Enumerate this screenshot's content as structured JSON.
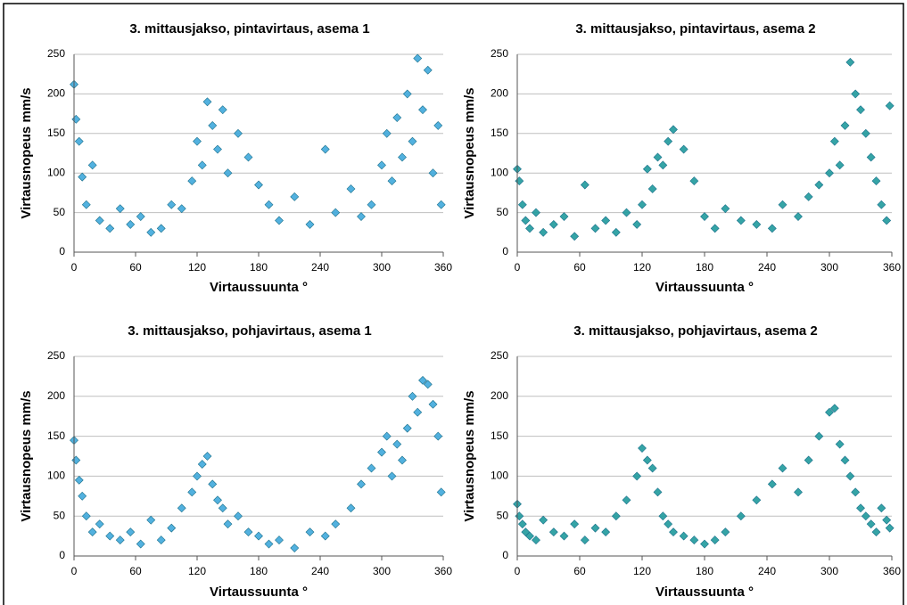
{
  "chart_data": [
    {
      "type": "scatter",
      "title": "3. mittausjakso, pintavirtaus, asema 1",
      "xlabel": "Virtaussuunta °",
      "ylabel": "Virtausnopeus mm/s",
      "color": "#3fa9dc",
      "x": [
        0,
        2,
        5,
        8,
        12,
        18,
        25,
        35,
        45,
        55,
        65,
        75,
        85,
        95,
        105,
        115,
        120,
        125,
        130,
        135,
        140,
        145,
        150,
        160,
        170,
        180,
        190,
        200,
        215,
        230,
        245,
        255,
        270,
        280,
        290,
        300,
        305,
        310,
        315,
        320,
        325,
        330,
        335,
        340,
        345,
        350,
        355,
        358
      ],
      "values": [
        212,
        168,
        140,
        95,
        60,
        110,
        40,
        30,
        55,
        35,
        45,
        25,
        30,
        60,
        55,
        90,
        140,
        110,
        190,
        160,
        130,
        180,
        100,
        150,
        120,
        85,
        60,
        40,
        70,
        35,
        130,
        50,
        80,
        45,
        60,
        110,
        150,
        90,
        170,
        120,
        200,
        140,
        245,
        180,
        230,
        100,
        160,
        60
      ],
      "xlim": [
        0,
        360
      ],
      "xticks": [
        0,
        60,
        120,
        180,
        240,
        300,
        360
      ],
      "ylim": [
        0,
        250
      ],
      "yticks": [
        0,
        50,
        100,
        150,
        200,
        250
      ],
      "grid": true
    },
    {
      "type": "scatter",
      "title": "3. mittausjakso, pintavirtaus, asema 2",
      "xlabel": "Virtaussuunta °",
      "ylabel": "Virtausnopeus mm/s",
      "color": "#1f9a9c",
      "x": [
        0,
        2,
        5,
        8,
        12,
        18,
        25,
        35,
        45,
        55,
        65,
        75,
        85,
        95,
        105,
        115,
        120,
        125,
        130,
        135,
        140,
        145,
        150,
        160,
        170,
        180,
        190,
        200,
        215,
        230,
        245,
        255,
        270,
        280,
        290,
        300,
        305,
        310,
        315,
        320,
        325,
        330,
        335,
        340,
        345,
        350,
        355,
        358
      ],
      "values": [
        105,
        90,
        60,
        40,
        30,
        50,
        25,
        35,
        45,
        20,
        85,
        30,
        40,
        25,
        50,
        35,
        60,
        105,
        80,
        120,
        110,
        140,
        155,
        130,
        90,
        45,
        30,
        55,
        40,
        35,
        30,
        60,
        45,
        70,
        85,
        100,
        140,
        110,
        160,
        240,
        200,
        180,
        150,
        120,
        90,
        60,
        40,
        185
      ],
      "xlim": [
        0,
        360
      ],
      "xticks": [
        0,
        60,
        120,
        180,
        240,
        300,
        360
      ],
      "ylim": [
        0,
        250
      ],
      "yticks": [
        0,
        50,
        100,
        150,
        200,
        250
      ],
      "grid": true
    },
    {
      "type": "scatter",
      "title": "3. mittausjakso, pohjavirtaus, asema 1",
      "xlabel": "Virtaussuunta °",
      "ylabel": "Virtausnopeus mm/s",
      "color": "#3fa9dc",
      "x": [
        0,
        2,
        5,
        8,
        12,
        18,
        25,
        35,
        45,
        55,
        65,
        75,
        85,
        95,
        105,
        115,
        120,
        125,
        130,
        135,
        140,
        145,
        150,
        160,
        170,
        180,
        190,
        200,
        215,
        230,
        245,
        255,
        270,
        280,
        290,
        300,
        305,
        310,
        315,
        320,
        325,
        330,
        335,
        340,
        345,
        350,
        355,
        358
      ],
      "values": [
        145,
        120,
        95,
        75,
        50,
        30,
        40,
        25,
        20,
        30,
        15,
        45,
        20,
        35,
        60,
        80,
        100,
        115,
        125,
        90,
        70,
        60,
        40,
        50,
        30,
        25,
        15,
        20,
        10,
        30,
        25,
        40,
        60,
        90,
        110,
        130,
        150,
        100,
        140,
        120,
        160,
        200,
        180,
        220,
        215,
        190,
        150,
        80
      ],
      "xlim": [
        0,
        360
      ],
      "xticks": [
        0,
        60,
        120,
        180,
        240,
        300,
        360
      ],
      "ylim": [
        0,
        250
      ],
      "yticks": [
        0,
        50,
        100,
        150,
        200,
        250
      ],
      "grid": true
    },
    {
      "type": "scatter",
      "title": "3. mittausjakso, pohjavirtaus, asema 2",
      "xlabel": "Virtaussuunta °",
      "ylabel": "Virtausnopeus mm/s",
      "color": "#1f9a9c",
      "x": [
        0,
        2,
        5,
        8,
        12,
        18,
        25,
        35,
        45,
        55,
        65,
        75,
        85,
        95,
        105,
        115,
        120,
        125,
        130,
        135,
        140,
        145,
        150,
        160,
        170,
        180,
        190,
        200,
        215,
        230,
        245,
        255,
        270,
        280,
        290,
        300,
        305,
        310,
        315,
        320,
        325,
        330,
        335,
        340,
        345,
        350,
        355,
        358
      ],
      "values": [
        65,
        50,
        40,
        30,
        25,
        20,
        45,
        30,
        25,
        40,
        20,
        35,
        30,
        50,
        70,
        100,
        135,
        120,
        110,
        80,
        50,
        40,
        30,
        25,
        20,
        15,
        20,
        30,
        50,
        70,
        90,
        110,
        80,
        120,
        150,
        180,
        185,
        140,
        120,
        100,
        80,
        60,
        50,
        40,
        30,
        60,
        45,
        35
      ],
      "xlim": [
        0,
        360
      ],
      "xticks": [
        0,
        60,
        120,
        180,
        240,
        300,
        360
      ],
      "ylim": [
        0,
        250
      ],
      "yticks": [
        0,
        50,
        100,
        150,
        200,
        250
      ],
      "grid": true
    }
  ]
}
